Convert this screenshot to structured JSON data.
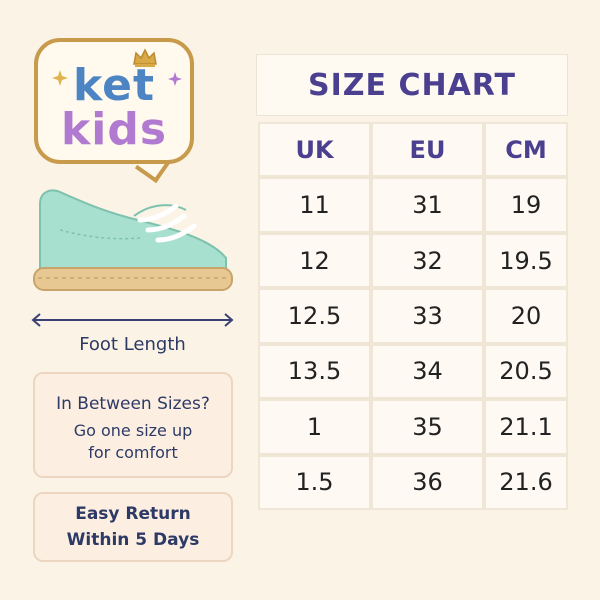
{
  "brand": {
    "line1": "ket",
    "line2": "kids"
  },
  "foot_label": "Foot Length",
  "info_sizes": {
    "title": "In Between Sizes?",
    "line1": "Go one size up",
    "line2": "for comfort"
  },
  "info_return": {
    "line1": "Easy Return",
    "line2": "Within 5 Days"
  },
  "chart": {
    "title": "SIZE CHART",
    "headers": [
      "UK",
      "EU",
      "CM"
    ],
    "rows": [
      [
        "11",
        "31",
        "19"
      ],
      [
        "12",
        "32",
        "19.5"
      ],
      [
        "12.5",
        "33",
        "20"
      ],
      [
        "13.5",
        "34",
        "20.5"
      ],
      [
        "1",
        "35",
        "21.1"
      ],
      [
        "1.5",
        "36",
        "21.6"
      ]
    ]
  },
  "colors": {
    "background": "#fbf4e6",
    "title": "#4b3f8f",
    "ket": "#4c84c4",
    "kids": "#b07ad0",
    "shoe": "#a8e0cf",
    "sole": "#e8c892"
  }
}
